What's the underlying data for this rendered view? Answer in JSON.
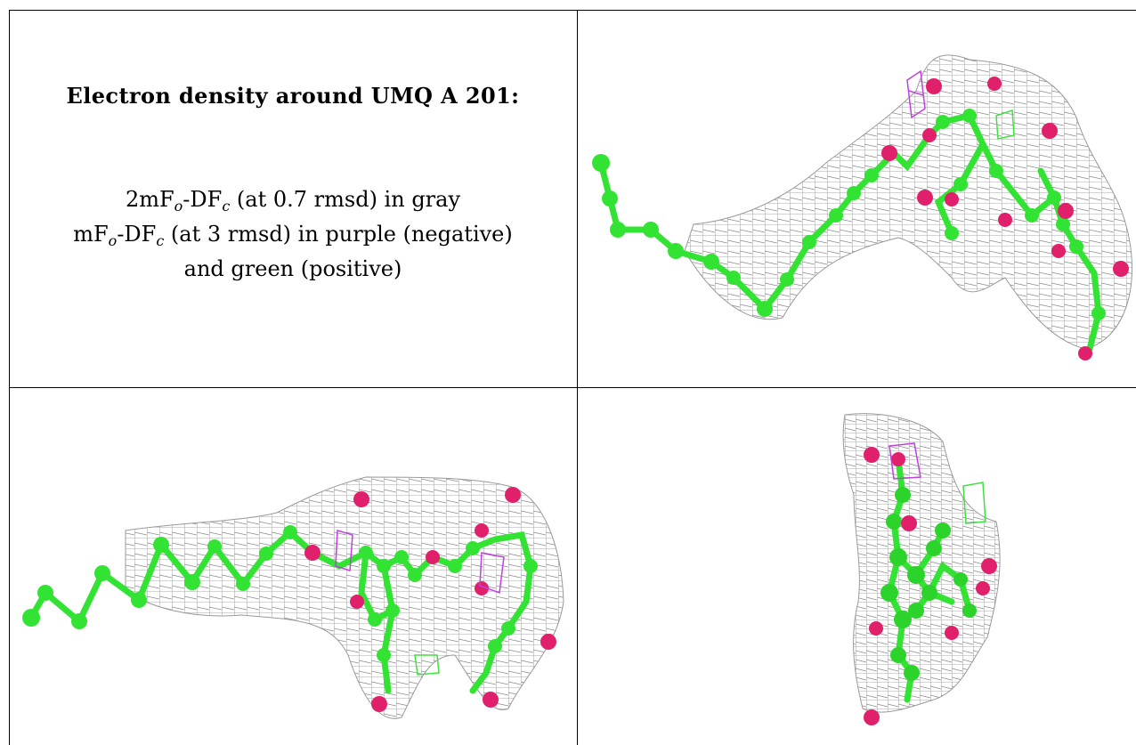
{
  "caption": {
    "title": "Electron density around UMQ A 201:",
    "line1_prefix": "2mF",
    "line1_sub1": "o",
    "line1_mid": "-DF",
    "line1_sub2": "c",
    "line1_suffix": " (at 0.7 rmsd) in gray",
    "line2_prefix": "mF",
    "line2_sub1": "o",
    "line2_mid": "-DF",
    "line2_sub2": "c",
    "line2_suffix": " (at 3 rmsd) in purple (negative)",
    "line3": "and green (positive)"
  },
  "colors": {
    "mesh_gray": "#8c8c8c",
    "carbon_green": "#33e333",
    "oxygen_pink": "#e0206a",
    "negative_purple": "#c040e0",
    "positive_green": "#40e040",
    "border": "#000000"
  },
  "panels": [
    {
      "name": "view-top-right",
      "content": "molecule model with density mesh"
    },
    {
      "name": "view-bottom-left",
      "content": "molecule model with density mesh"
    },
    {
      "name": "view-bottom-right",
      "content": "molecule model with density mesh"
    }
  ]
}
